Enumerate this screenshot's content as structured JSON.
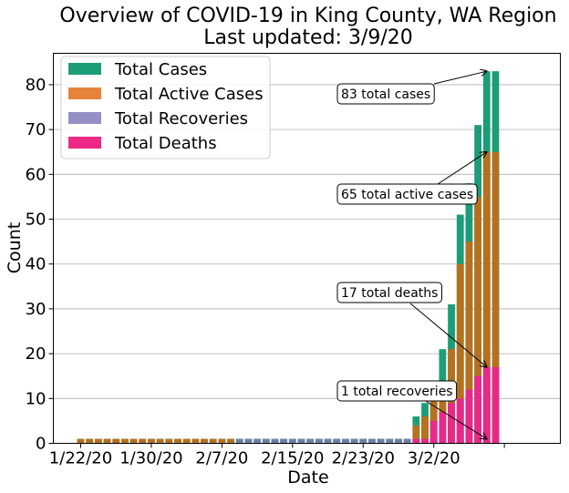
{
  "chart_data": {
    "type": "bar",
    "title": [
      "Overview of COVID-19 in King County, WA Region",
      "Last updated: 3/9/20"
    ],
    "xlabel": "Date",
    "ylabel": "Count",
    "ylim": [
      0,
      87
    ],
    "yticks": [
      0,
      10,
      20,
      30,
      40,
      50,
      60,
      70,
      80
    ],
    "grid": "y",
    "legend_position": "top-left",
    "dates": [
      "1/22/20",
      "1/23/20",
      "1/24/20",
      "1/25/20",
      "1/26/20",
      "1/27/20",
      "1/28/20",
      "1/29/20",
      "1/30/20",
      "1/31/20",
      "2/1/20",
      "2/2/20",
      "2/3/20",
      "2/4/20",
      "2/5/20",
      "2/6/20",
      "2/7/20",
      "2/8/20",
      "2/9/20",
      "2/10/20",
      "2/11/20",
      "2/12/20",
      "2/13/20",
      "2/14/20",
      "2/15/20",
      "2/16/20",
      "2/17/20",
      "2/18/20",
      "2/19/20",
      "2/20/20",
      "2/21/20",
      "2/22/20",
      "2/23/20",
      "2/24/20",
      "2/25/20",
      "2/26/20",
      "2/27/20",
      "2/28/20",
      "2/29/20",
      "3/1/20",
      "3/2/20",
      "3/3/20",
      "3/4/20",
      "3/5/20",
      "3/6/20",
      "3/7/20",
      "3/8/20",
      "3/9/20"
    ],
    "xtick_labels": [
      "1/22/20",
      "1/30/20",
      "2/7/20",
      "2/15/20",
      "2/23/20",
      "3/2/20"
    ],
    "xtick_dates": [
      "1/22/20",
      "1/30/20",
      "2/7/20",
      "2/15/20",
      "2/23/20",
      "3/2/20",
      "3/10/20"
    ],
    "series": [
      {
        "name": "Total Cases",
        "color": "#1b9e77",
        "values": [
          1,
          1,
          1,
          1,
          1,
          1,
          1,
          1,
          1,
          1,
          1,
          1,
          1,
          1,
          1,
          1,
          1,
          1,
          1,
          1,
          1,
          1,
          1,
          1,
          1,
          1,
          1,
          1,
          1,
          1,
          1,
          1,
          1,
          1,
          1,
          1,
          1,
          1,
          6,
          9,
          14,
          21,
          31,
          51,
          58,
          71,
          83,
          83
        ]
      },
      {
        "name": "Total Active Cases",
        "color": "#d95f02",
        "values": [
          1,
          1,
          1,
          1,
          1,
          1,
          1,
          1,
          1,
          1,
          1,
          1,
          1,
          1,
          1,
          1,
          1,
          1,
          0,
          0,
          0,
          0,
          0,
          0,
          0,
          0,
          0,
          0,
          0,
          0,
          0,
          0,
          0,
          0,
          0,
          0,
          0,
          0,
          4,
          6,
          10,
          14,
          21,
          40,
          45,
          55,
          65,
          65
        ]
      },
      {
        "name": "Total Recoveries",
        "color": "#7570b3",
        "values": [
          0,
          0,
          0,
          0,
          0,
          0,
          0,
          0,
          0,
          0,
          0,
          0,
          0,
          0,
          0,
          0,
          0,
          0,
          1,
          1,
          1,
          1,
          1,
          1,
          1,
          1,
          1,
          1,
          1,
          1,
          1,
          1,
          1,
          1,
          1,
          1,
          1,
          1,
          1,
          1,
          1,
          1,
          1,
          1,
          1,
          1,
          1,
          1
        ]
      },
      {
        "name": "Total Deaths",
        "color": "#e7298a",
        "values": [
          0,
          0,
          0,
          0,
          0,
          0,
          0,
          0,
          0,
          0,
          0,
          0,
          0,
          0,
          0,
          0,
          0,
          0,
          0,
          0,
          0,
          0,
          0,
          0,
          0,
          0,
          0,
          0,
          0,
          0,
          0,
          0,
          0,
          0,
          0,
          0,
          0,
          0,
          1,
          1,
          5,
          7,
          9,
          10,
          12,
          15,
          17,
          17
        ]
      }
    ],
    "annotations": [
      {
        "text": "83 total cases",
        "target_index": 46,
        "target_value": 83
      },
      {
        "text": "65 total active cases",
        "target_index": 46,
        "target_value": 65
      },
      {
        "text": "17 total deaths",
        "target_index": 46,
        "target_value": 17
      },
      {
        "text": "1 total recoveries",
        "target_index": 46,
        "target_value": 1
      }
    ]
  }
}
